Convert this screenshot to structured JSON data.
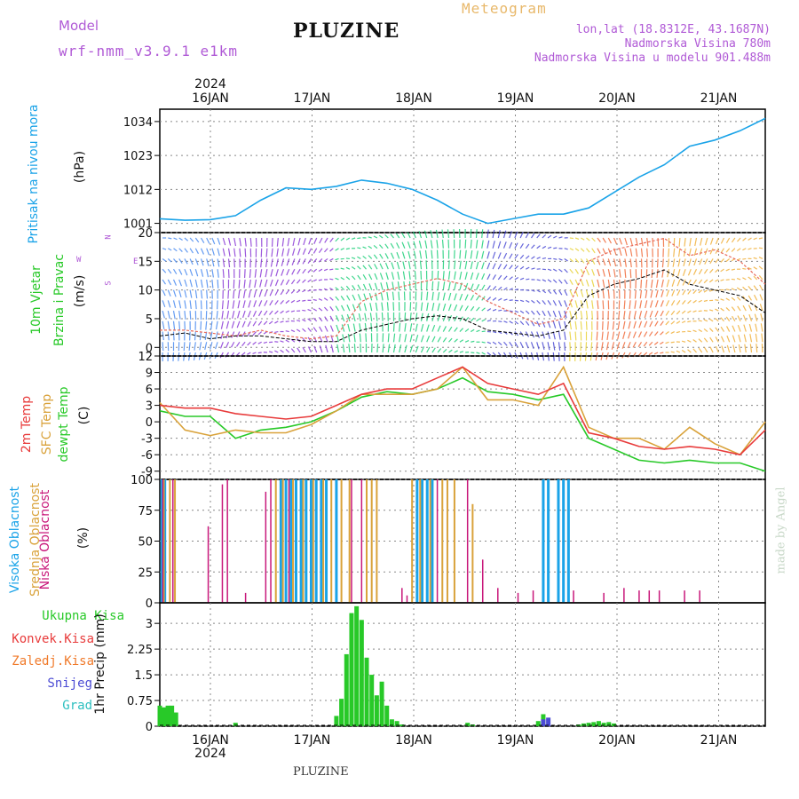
{
  "header": {
    "model_label": "Model",
    "model_value": "wrf-nmm_v3.9.1 e1km",
    "title": "PLUZINE",
    "meteogram_label": "Meteogram",
    "lonlat": "lon,lat (18.8312E, 43.1687N)",
    "altitude": "Nadmorska Visina 780m",
    "model_altitude": "Nadmorska Visina u modelu 901.488m",
    "footer": "PLUZINE",
    "credit": "made by Angel"
  },
  "time_axis": {
    "year": "2024",
    "days": [
      "16JAN",
      "17JAN",
      "18JAN",
      "19JAN",
      "20JAN",
      "21JAN"
    ]
  },
  "colors": {
    "pressure": "#1aa3e8",
    "temp2m": "#e83b3b",
    "sfc_temp": "#d9a23a",
    "dewpoint": "#28c928",
    "high_cloud": "#1aa3e8",
    "mid_cloud": "#d9a23a",
    "low_cloud": "#c8177a",
    "total_precip": "#28c928",
    "conv_precip": "#e83b3b",
    "frozen_precip": "#f07a2a",
    "snow": "#4b4bd4",
    "hail": "#2cbfbf",
    "wind_label": "#28c928",
    "purple_text": "#b05ad6"
  },
  "panels": {
    "pressure": {
      "label": "Pritisak na nivou mora",
      "unit": "(hPa)"
    },
    "wind": {
      "label1": "10m Vjetar",
      "label2": "Brzina i Pravac",
      "unit": "(m/s)",
      "dir_labels": [
        "N",
        "E",
        "S",
        "W"
      ]
    },
    "temp": {
      "labels": [
        "2m Temp",
        "SFC Temp",
        "dewpt Temp"
      ],
      "unit": "(C)"
    },
    "cloud": {
      "labels": [
        "Visoka Oblacnost",
        "Srednja Oblacnost",
        "Niska Oblacnost"
      ],
      "unit": "(%)"
    },
    "precip": {
      "legend": [
        "Ukupna Kisa",
        "Konvek.Kisa",
        "Zaledj.Kisa",
        "Snijeg",
        "Grad"
      ],
      "axis_label": "1hr Precip (mm)"
    }
  },
  "chart_data": [
    {
      "type": "line",
      "title": "Pritisak na nivou mora",
      "ylabel": "(hPa)",
      "ylim": [
        998,
        1038
      ],
      "yticks": [
        1001,
        1012,
        1023,
        1034
      ],
      "x_days": [
        0,
        0.25,
        0.5,
        0.75,
        1,
        1.25,
        1.5,
        1.75,
        2,
        2.25,
        2.5,
        2.75,
        3,
        3.25,
        3.5,
        3.75,
        4,
        4.25,
        4.5,
        4.75,
        5,
        5.25,
        5.5,
        5.75,
        6
      ],
      "series": [
        {
          "name": "Pritisak na nivou mora",
          "values": [
            1002.5,
            1002,
            1002.2,
            1003.5,
            1008.5,
            1012.5,
            1012,
            1013,
            1015,
            1014,
            1012,
            1008.5,
            1004,
            1001,
            1002.5,
            1004,
            1004,
            1006,
            1011,
            1016,
            1020,
            1026,
            1028,
            1031,
            1035
          ]
        }
      ]
    },
    {
      "type": "line",
      "title": "10m Vjetar Brzina i Pravac",
      "ylabel": "(m/s)",
      "ylim": [
        -1.5,
        20
      ],
      "yticks": [
        0,
        5,
        10,
        15,
        20
      ],
      "x_days": [
        0,
        0.25,
        0.5,
        0.75,
        1,
        1.25,
        1.5,
        1.75,
        2,
        2.25,
        2.5,
        2.75,
        3,
        3.25,
        3.5,
        3.75,
        4,
        4.25,
        4.5,
        4.75,
        5,
        5.25,
        5.5,
        5.75,
        6
      ],
      "series": [
        {
          "name": "10m Vjetar",
          "values": [
            2,
            2.5,
            1.5,
            2,
            2,
            1.5,
            1,
            1,
            3,
            4,
            5,
            5.5,
            5,
            3,
            2.5,
            2,
            3,
            9,
            11,
            12,
            13.5,
            11,
            10,
            9,
            6
          ]
        },
        {
          "name": "",
          "values": [
            3,
            3,
            2.5,
            2,
            3,
            2,
            1.5,
            2,
            8,
            10,
            11,
            12,
            11,
            8,
            6,
            4,
            5,
            15,
            17,
            18,
            19,
            16,
            17,
            15,
            11
          ]
        }
      ]
    },
    {
      "type": "line",
      "title": "",
      "ylabel": "(C)",
      "ylim": [
        -10.5,
        12
      ],
      "yticks": [
        -9,
        -6,
        -3,
        0,
        3,
        6,
        9,
        12
      ],
      "x_days": [
        0,
        0.25,
        0.5,
        0.75,
        1,
        1.25,
        1.5,
        1.75,
        2,
        2.25,
        2.5,
        2.75,
        3,
        3.25,
        3.5,
        3.75,
        4,
        4.25,
        4.5,
        4.75,
        5,
        5.25,
        5.5,
        5.75,
        6
      ],
      "series": [
        {
          "name": "2m Temp",
          "values": [
            3,
            2.5,
            2.5,
            1.5,
            1,
            0.5,
            1,
            3,
            5,
            6,
            6,
            8,
            10,
            7,
            6,
            5,
            7,
            -2,
            -3,
            -4.5,
            -5,
            -4.5,
            -5,
            -6,
            -1.5
          ]
        },
        {
          "name": "SFC Temp",
          "values": [
            3.5,
            -1.5,
            -2.5,
            -1.5,
            -2,
            -2,
            -0.5,
            2,
            5,
            5,
            5,
            6,
            10,
            4,
            4,
            3,
            10,
            -1,
            -3,
            -3,
            -5,
            -1,
            -4,
            -6,
            0
          ]
        },
        {
          "name": "dewpt Temp",
          "values": [
            2,
            1,
            1,
            -3,
            -1.5,
            -1,
            0,
            2,
            4.5,
            5.5,
            5,
            6,
            8,
            5.5,
            5,
            4,
            5,
            -3,
            -5,
            -7,
            -7.5,
            -7,
            -7.5,
            -7.5,
            -9
          ]
        }
      ]
    },
    {
      "type": "bar",
      "title": "Oblacnost",
      "ylabel": "(%)",
      "ylim": [
        0,
        100
      ],
      "yticks": [
        0,
        25,
        50,
        75,
        100
      ],
      "series": [
        {
          "name": "Visoka Oblacnost",
          "x_days": [
            0.02,
            0.05,
            1.2,
            1.25,
            1.3,
            1.35,
            1.4,
            1.45,
            1.5,
            1.55,
            1.6,
            1.65,
            1.75,
            2.55,
            2.6,
            2.65,
            2.7,
            3.8,
            3.85,
            3.95,
            4.0,
            4.05
          ],
          "values": [
            100,
            100,
            100,
            100,
            100,
            100,
            100,
            100,
            100,
            100,
            100,
            100,
            100,
            100,
            100,
            100,
            100,
            100,
            100,
            100,
            100,
            100
          ]
        },
        {
          "name": "Srednja Oblacnost",
          "x_days": [
            0.04,
            0.1,
            0.15,
            1.15,
            1.22,
            1.32,
            1.42,
            1.52,
            1.62,
            1.7,
            1.8,
            1.88,
            2.05,
            2.1,
            2.15,
            2.5,
            2.58,
            2.68,
            2.8,
            2.85,
            2.92,
            3.1
          ],
          "values": [
            100,
            100,
            100,
            100,
            100,
            100,
            100,
            100,
            100,
            100,
            100,
            100,
            100,
            100,
            100,
            100,
            100,
            100,
            100,
            100,
            100,
            80
          ]
        },
        {
          "name": "Niska Oblacnost",
          "x_days": [
            0.03,
            0.13,
            0.48,
            0.62,
            0.67,
            0.85,
            1.05,
            1.1,
            1.28,
            1.9,
            2.0,
            2.4,
            2.45,
            2.75,
            3.05,
            3.2,
            3.35,
            3.55,
            3.7,
            4.1,
            4.4,
            4.6,
            4.75,
            4.85,
            4.95,
            5.2,
            5.35
          ],
          "values": [
            100,
            100,
            62,
            96,
            100,
            8,
            90,
            100,
            100,
            100,
            100,
            12,
            6,
            100,
            100,
            35,
            12,
            8,
            10,
            10,
            8,
            12,
            10,
            10,
            10,
            10,
            10
          ]
        }
      ]
    },
    {
      "type": "bar",
      "title": "1hr Precip",
      "ylabel": "1hr Precip (mm)",
      "ylim": [
        0,
        3.6
      ],
      "yticks": [
        0,
        0.75,
        1.5,
        2.25,
        3
      ],
      "series": [
        {
          "name": "Ukupna Kisa",
          "x_days": [
            0.0,
            0.04,
            0.08,
            0.12,
            0.16,
            0.75,
            1.75,
            1.8,
            1.85,
            1.9,
            1.95,
            2.0,
            2.05,
            2.1,
            2.15,
            2.2,
            2.25,
            2.3,
            2.35,
            2.4,
            3.05,
            3.1,
            3.75,
            3.8,
            4.15,
            4.2,
            4.25,
            4.3,
            4.35,
            4.4,
            4.45,
            4.5
          ],
          "values": [
            0.6,
            0.55,
            0.6,
            0.6,
            0.4,
            0.1,
            0.3,
            0.8,
            2.1,
            3.3,
            3.5,
            3.1,
            2.0,
            1.5,
            0.9,
            1.3,
            0.6,
            0.2,
            0.15,
            0.05,
            0.1,
            0.05,
            0.15,
            0.35,
            0.05,
            0.08,
            0.1,
            0.12,
            0.15,
            0.1,
            0.12,
            0.08
          ]
        },
        {
          "name": "Snijeg",
          "x_days": [
            3.8,
            3.85
          ],
          "values": [
            0.2,
            0.25
          ]
        }
      ]
    }
  ]
}
